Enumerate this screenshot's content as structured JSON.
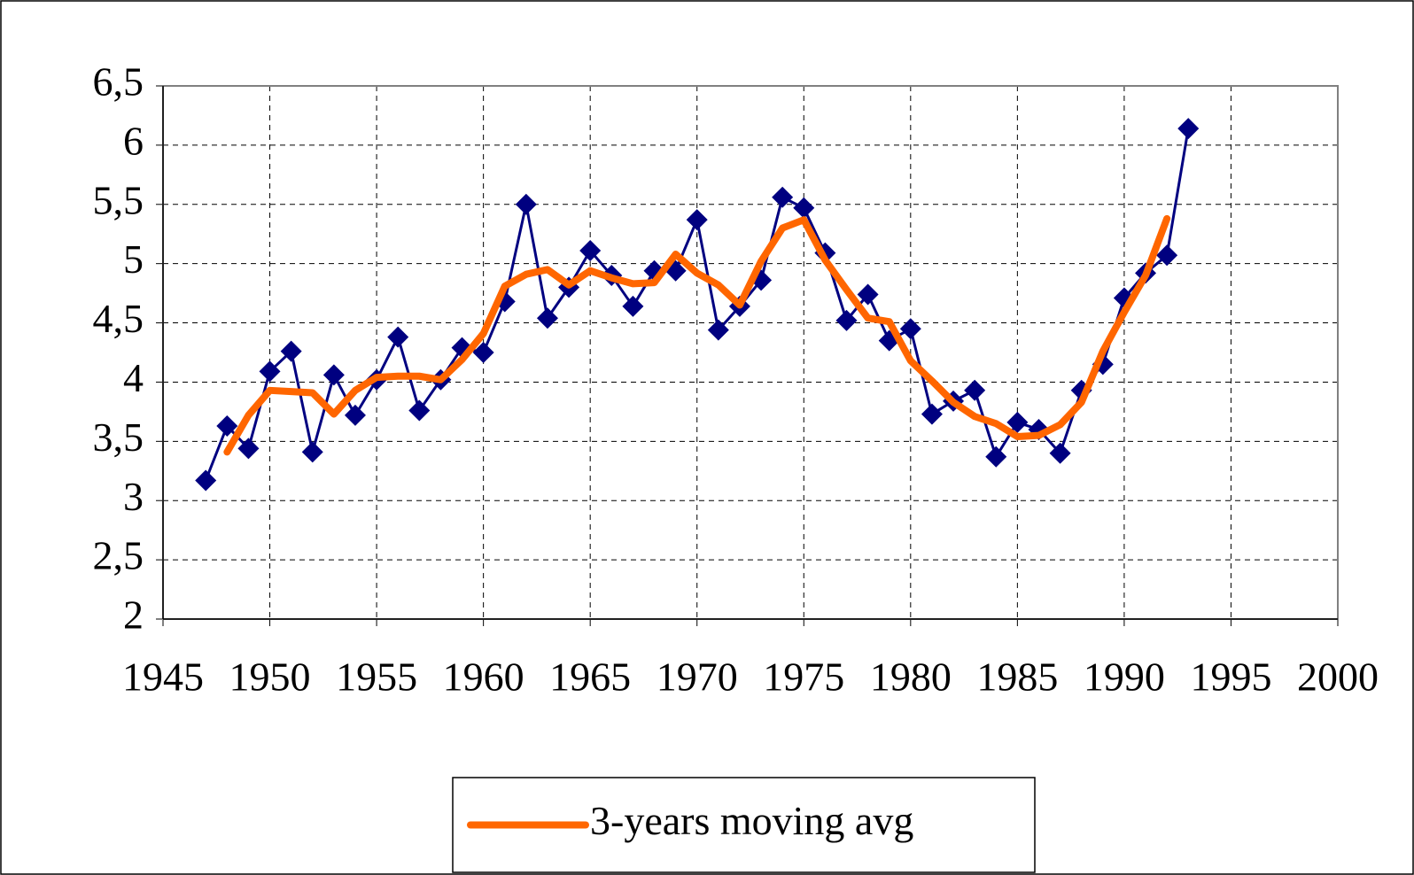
{
  "chart_data": {
    "type": "line",
    "x": [
      1947,
      1948,
      1949,
      1950,
      1951,
      1952,
      1953,
      1954,
      1955,
      1956,
      1957,
      1958,
      1959,
      1960,
      1961,
      1962,
      1963,
      1964,
      1965,
      1966,
      1967,
      1968,
      1969,
      1970,
      1971,
      1972,
      1973,
      1974,
      1975,
      1976,
      1977,
      1978,
      1979,
      1980,
      1981,
      1982,
      1983,
      1984,
      1985,
      1986,
      1987,
      1988,
      1989,
      1990,
      1991,
      1992,
      1993
    ],
    "series": [
      {
        "color": "#000080",
        "marker": "diamond",
        "values": [
          3.17,
          3.63,
          3.44,
          4.09,
          4.26,
          3.41,
          4.06,
          3.72,
          4.02,
          4.38,
          3.76,
          4.02,
          4.29,
          4.25,
          4.68,
          5.5,
          4.54,
          4.8,
          5.11,
          4.9,
          4.64,
          4.94,
          4.94,
          5.37,
          4.44,
          4.64,
          4.86,
          5.56,
          5.47,
          5.09,
          4.52,
          4.74,
          4.35,
          4.45,
          3.73,
          3.84,
          3.93,
          3.37,
          3.66,
          3.6,
          3.4,
          3.93,
          4.15,
          4.71,
          4.92,
          5.07,
          6.14
        ]
      },
      {
        "name": "3-years moving avg",
        "color": "#ff6600",
        "values": [
          null,
          3.41,
          3.72,
          3.93,
          3.92,
          3.91,
          3.73,
          3.93,
          4.04,
          4.05,
          4.05,
          4.02,
          4.19,
          4.41,
          4.81,
          4.91,
          4.95,
          4.82,
          4.94,
          4.88,
          4.83,
          4.84,
          5.08,
          4.92,
          4.82,
          4.65,
          5.02,
          5.3,
          5.37,
          5.03,
          4.78,
          4.54,
          4.51,
          4.18,
          4.01,
          3.83,
          3.71,
          3.65,
          3.54,
          3.55,
          3.64,
          3.83,
          4.26,
          4.59,
          4.9,
          5.38,
          null
        ]
      }
    ],
    "xlim": [
      1945,
      2000
    ],
    "xticks": [
      1945,
      1950,
      1955,
      1960,
      1965,
      1970,
      1975,
      1980,
      1985,
      1990,
      1995,
      2000
    ],
    "ylim": [
      2,
      6.5
    ],
    "yticks": [
      2,
      {
        "value": 2.5,
        "label": "2,5"
      },
      3,
      {
        "value": 3.5,
        "label": "3,5"
      },
      4,
      {
        "value": 4.5,
        "label": "4,5"
      },
      5,
      {
        "value": 5.5,
        "label": "5,5"
      },
      6,
      {
        "value": 6.5,
        "label": "6,5"
      }
    ],
    "grid": true,
    "legend": "bottom"
  }
}
